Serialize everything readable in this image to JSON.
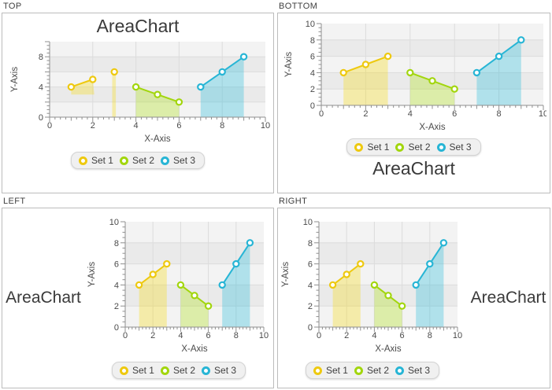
{
  "chart_data": [
    {
      "panel_label": "TOP",
      "title": "AreaChart",
      "title_side": "top",
      "type": "area",
      "xlabel": "X-Axis",
      "ylabel": "Y-Axis",
      "xlim": [
        0,
        10
      ],
      "ylim": [
        0,
        10
      ],
      "grid": true,
      "legend_position": "bottom",
      "x_ticks": [
        0,
        2,
        4,
        6,
        8,
        10
      ],
      "x_tick_labels": [
        "0",
        "2",
        "4",
        "6",
        "8",
        "10"
      ],
      "y_ticks": [
        0,
        4,
        8
      ],
      "y_tick_labels": [
        "0",
        "4",
        "8"
      ],
      "series": [
        {
          "name": "Set 1",
          "color": "#eec90f",
          "fill": "rgba(249,217,0,0.30)",
          "points": [
            [
              1,
              4
            ],
            [
              2,
              5
            ],
            [
              3,
              6
            ]
          ],
          "line_points": [
            [
              1,
              4
            ],
            [
              2,
              5
            ]
          ],
          "fill_polygon": [
            [
              1,
              3
            ],
            [
              1,
              4
            ],
            [
              2,
              5
            ],
            [
              2.07,
              3
            ]
          ],
          "bar": {
            "x1": 2.9,
            "y1": 0,
            "x2": 3.07,
            "y2": 6
          }
        },
        {
          "name": "Set 2",
          "color": "#a2d60d",
          "fill": "rgba(169,226,0,0.30)",
          "points": [
            [
              4,
              4
            ],
            [
              5,
              3
            ],
            [
              6,
              2
            ]
          ]
        },
        {
          "name": "Set 3",
          "color": "#27b5d5",
          "fill": "rgba(34,186,217,0.32)",
          "points": [
            [
              7,
              4
            ],
            [
              8,
              6
            ],
            [
              9,
              8
            ]
          ]
        }
      ]
    },
    {
      "panel_label": "BOTTOM",
      "title": "AreaChart",
      "title_side": "bottom",
      "type": "area",
      "xlabel": "X-Axis",
      "ylabel": "Y-Axis",
      "xlim": [
        0,
        10
      ],
      "ylim": [
        0,
        10
      ],
      "grid": true,
      "legend_position": "bottom",
      "x_ticks": [
        0,
        2,
        4,
        6,
        8,
        10
      ],
      "x_tick_labels": [
        "0",
        "2",
        "4",
        "6",
        "8",
        "10"
      ],
      "y_ticks": [
        0,
        2,
        4,
        6,
        8,
        10
      ],
      "y_tick_labels": [
        "0",
        "2",
        "4",
        "6",
        "8",
        "10"
      ],
      "series": [
        {
          "name": "Set 1",
          "color": "#eec90f",
          "fill": "rgba(249,217,0,0.30)",
          "points": [
            [
              1,
              4
            ],
            [
              2,
              5
            ],
            [
              3,
              6
            ]
          ]
        },
        {
          "name": "Set 2",
          "color": "#a2d60d",
          "fill": "rgba(169,226,0,0.30)",
          "points": [
            [
              4,
              4
            ],
            [
              5,
              3
            ],
            [
              6,
              2
            ]
          ]
        },
        {
          "name": "Set 3",
          "color": "#27b5d5",
          "fill": "rgba(34,186,217,0.32)",
          "points": [
            [
              7,
              4
            ],
            [
              8,
              6
            ],
            [
              9,
              8
            ]
          ]
        }
      ]
    },
    {
      "panel_label": "LEFT",
      "title": "AreaChart",
      "title_side": "left",
      "type": "area",
      "xlabel": "X-Axis",
      "ylabel": "Y-Axis",
      "xlim": [
        0,
        10
      ],
      "ylim": [
        0,
        10
      ],
      "grid": true,
      "legend_position": "bottom",
      "x_ticks": [
        0,
        2,
        4,
        6,
        8,
        10
      ],
      "x_tick_labels": [
        "0",
        "2",
        "4",
        "6",
        "8",
        "10"
      ],
      "y_ticks": [
        0,
        2,
        4,
        6,
        8,
        10
      ],
      "y_tick_labels": [
        "0",
        "2",
        "4",
        "6",
        "8",
        "10"
      ],
      "series": [
        {
          "name": "Set 1",
          "color": "#eec90f",
          "fill": "rgba(249,217,0,0.30)",
          "points": [
            [
              1,
              4
            ],
            [
              2,
              5
            ],
            [
              3,
              6
            ]
          ]
        },
        {
          "name": "Set 2",
          "color": "#a2d60d",
          "fill": "rgba(169,226,0,0.30)",
          "points": [
            [
              4,
              4
            ],
            [
              5,
              3
            ],
            [
              6,
              2
            ]
          ]
        },
        {
          "name": "Set 3",
          "color": "#27b5d5",
          "fill": "rgba(34,186,217,0.32)",
          "points": [
            [
              7,
              4
            ],
            [
              8,
              6
            ],
            [
              9,
              8
            ]
          ]
        }
      ]
    },
    {
      "panel_label": "RIGHT",
      "title": "AreaChart",
      "title_side": "right",
      "type": "area",
      "xlabel": "X-Axis",
      "ylabel": "Y-Axis",
      "xlim": [
        0,
        10
      ],
      "ylim": [
        0,
        10
      ],
      "grid": true,
      "legend_position": "bottom",
      "x_ticks": [
        0,
        2,
        4,
        6,
        8,
        10
      ],
      "x_tick_labels": [
        "0",
        "2",
        "4",
        "6",
        "8",
        "10"
      ],
      "y_ticks": [
        0,
        2,
        4,
        6,
        8,
        10
      ],
      "y_tick_labels": [
        "0",
        "2",
        "4",
        "6",
        "8",
        "10"
      ],
      "series": [
        {
          "name": "Set 1",
          "color": "#eec90f",
          "fill": "rgba(249,217,0,0.30)",
          "points": [
            [
              1,
              4
            ],
            [
              2,
              5
            ],
            [
              3,
              6
            ]
          ]
        },
        {
          "name": "Set 2",
          "color": "#a2d60d",
          "fill": "rgba(169,226,0,0.30)",
          "points": [
            [
              4,
              4
            ],
            [
              5,
              3
            ],
            [
              6,
              2
            ]
          ]
        },
        {
          "name": "Set 3",
          "color": "#27b5d5",
          "fill": "rgba(34,186,217,0.32)",
          "points": [
            [
              7,
              4
            ],
            [
              8,
              6
            ],
            [
              9,
              8
            ]
          ]
        }
      ]
    }
  ]
}
